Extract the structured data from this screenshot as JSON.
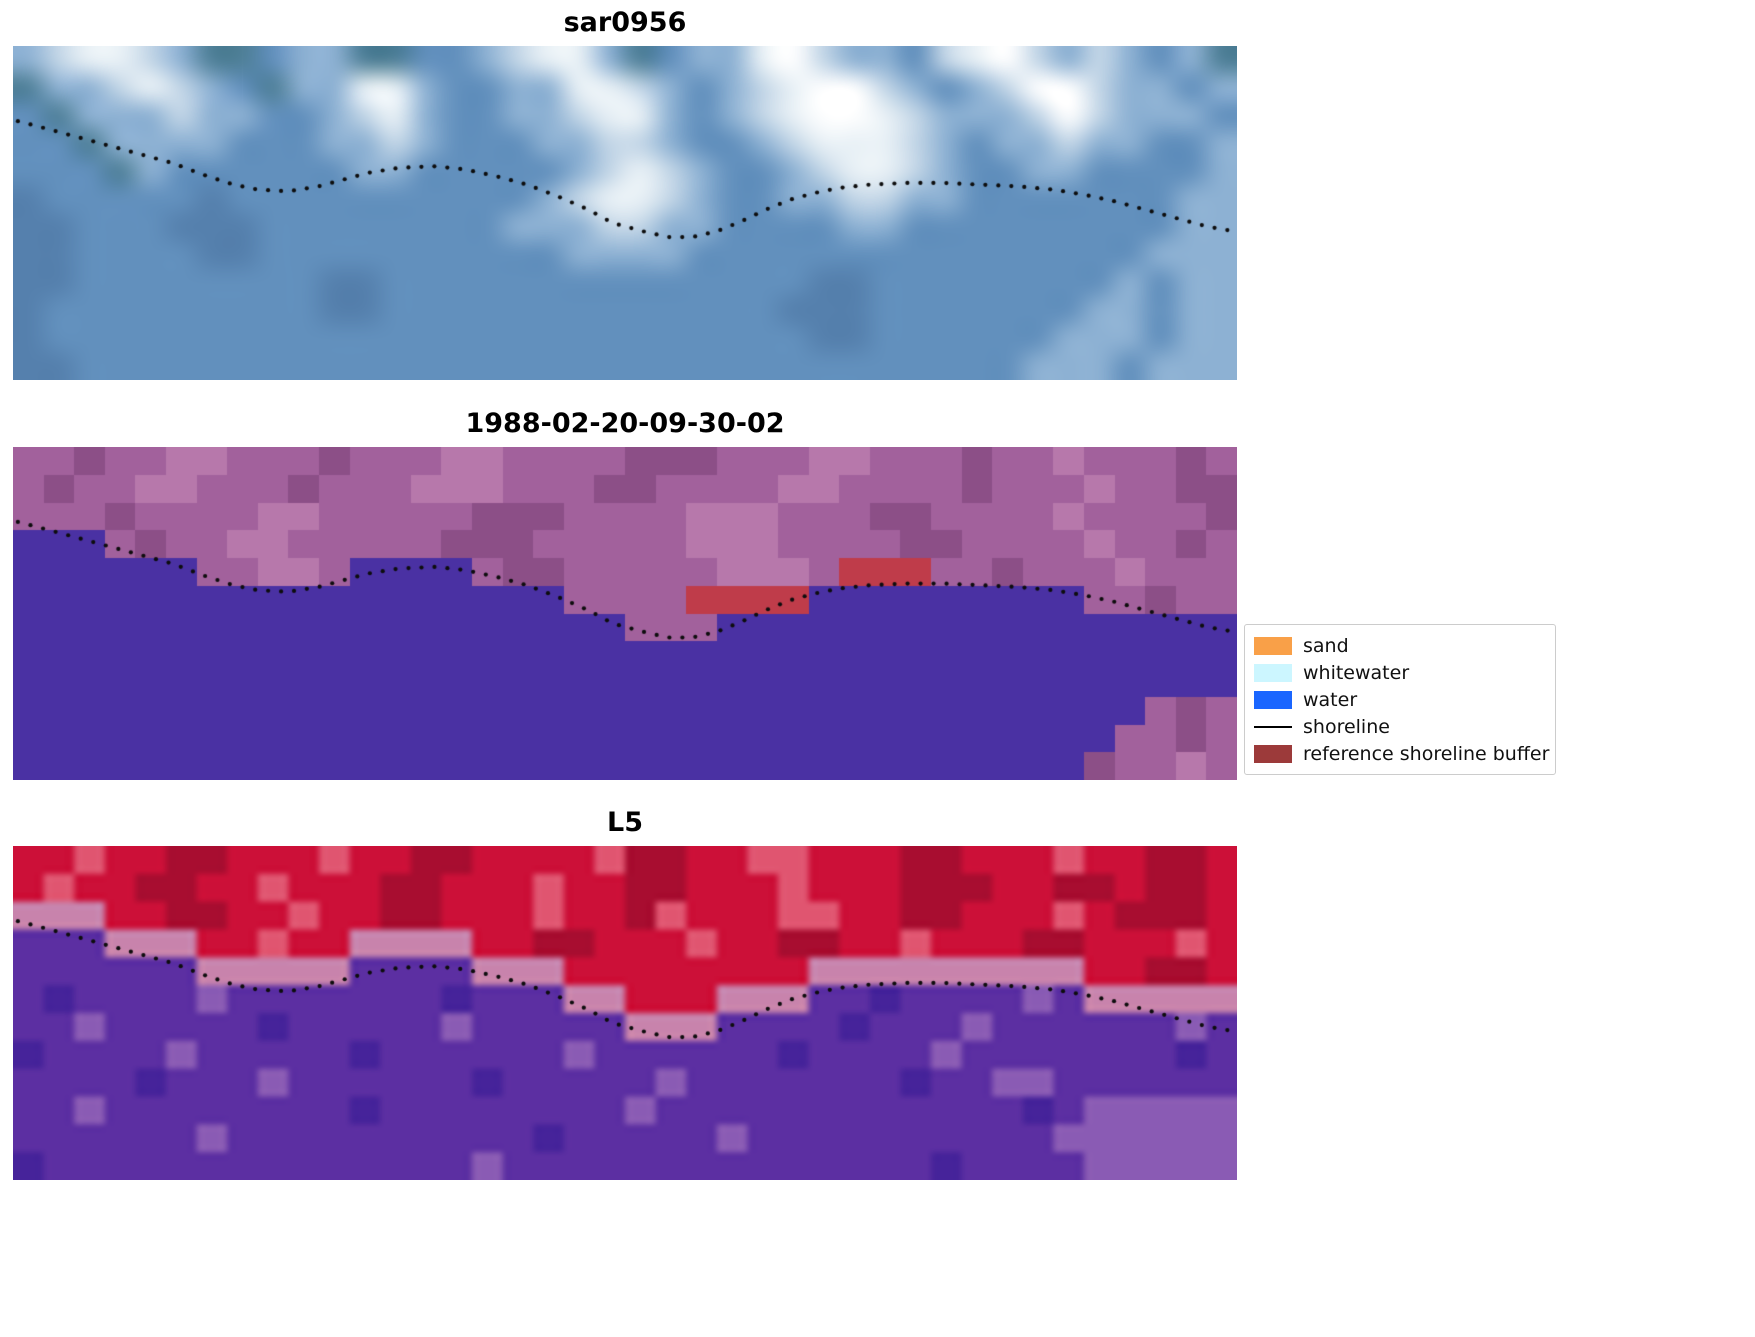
{
  "figure": {
    "panels": [
      {
        "id": "sar0956",
        "title": "sar0956",
        "render": "smooth",
        "grid": {
          "cols": 40,
          "rows": 12,
          "palette": {
            "t": "#4e7f97",
            "b": "#6290bd",
            "B": "#5580ad",
            "l": "#8db1d3",
            "L": "#c3d6e7",
            "w": "#e9f1f6",
            "W": "#ffffff"
          },
          "cells": [
            "lLwwLlttbllttbblLwwltbllwWLllbLwWLlLlblt",
            "tllLwLlbtllwwlbbllwwLlblLwWWLlblLWWLllbl",
            "btlllLllbblLwlbbllLwwlblLwWWwLlllLWLlllb",
            "bbtllllbbbllLlbbbllLLlbblLwwwLlbllLllbbl",
            "bbbtlbbbbbbllbbbbblLwLlbblLwwLlbbllbbbbl",
            "BbbbbbBbbbbbbbbbblLwwLlbbllLLllbbbbbbbll",
            "BBbbbBBBbbbbbbbblllLLllbbbbllbbbbbbbbbll",
            "BBbbbbBBbbbbbbbbbbllllbbbbbbbbbbbbbbblll",
            "BBbbbbbbbbBBbbbbbbbbbbbbbbBBbbbbbbbblbll",
            "BbbbbbbbbbBBbbbbbbbbbbbbbBBBbbbbbbbllbll",
            "BbbbbbbbbbbbbbbbbbbbbbbbbbBBbbbbbblllbll",
            "BBbbbbbbbbbbbbbbbbbbbbbbbbbbbbbbblllblll"
          ]
        }
      },
      {
        "id": "classified",
        "title": "1988-02-20-09-30-02",
        "render": "nearest",
        "grid": {
          "cols": 40,
          "rows": 12,
          "palette": {
            "m": "#a2619c",
            "d": "#8c4f87",
            "p": "#b778ab",
            "W": "#4a31a3",
            "R": "#bf3c4a"
          },
          "cells": [
            "mmdmmppmmmdmmmppmmmmdddmmmppmmmdmmpmmmdm",
            "mdmmppmmmdmmmpppmmmddmmmmppmmmmdmmmpmmdd",
            "mmmdmmmmppmmmmmdddmmmmpppmmmddmmmmpmmmmd",
            "WWWmdmmppmmmmmdddmmmmmpppmmmmddmmmmpmmdm",
            "WWWWWWmmppmWWWWmddmmmmmpppmRRRmmdmmmpmmm",
            "WWWWWWWWWWWWWWWWWWmmmmRRRRWWWWWWWWWmmdmm",
            "WWWWWWWWWWWWWWWWWWWWmmmWWWWWWWWWWWWWWWWW",
            "WWWWWWWWWWWWWWWWWWWWWWWWWWWWWWWWWWWWWWWW",
            "WWWWWWWWWWWWWWWWWWWWWWWWWWWWWWWWWWWWWWWW",
            "WWWWWWWWWWWWWWWWWWWWWWWWWWWWWWWWWWWWWmdm",
            "WWWWWWWWWWWWWWWWWWWWWWWWWWWWWWWWWWWWmmdm",
            "WWWWWWWWWWWWWWWWWWWWWWWWWWWWWWWWWWWdmmpm"
          ]
        }
      },
      {
        "id": "L5",
        "title": "L5",
        "render": "soft-block",
        "grid": {
          "cols": 40,
          "rows": 12,
          "palette": {
            "a": "#cc1038",
            "b": "#a80d30",
            "c": "#e05570",
            "t": "#c883ac",
            "P": "#5c2fa2",
            "Q": "#46239a",
            "q": "#8a5bb4"
          },
          "cells": [
            "aacaabbaaacaabbaaaacbbaaccaaabbaaacaabba",
            "acaabbaacaaabbaaacaabbaaacaaabbbaabbabba",
            "tttaabbaacaabbaaacaabcaaaccaabbaaacabbba",
            "PPPtttaacaattttaabbaaacaabbaacaaabbaaaca",
            "PPPPPPtttttPPPPtttaaaaaaaatttttttttaabba",
            "PQPPPPqPPPPPPPQPPPttaaatttPPQPPPPqPttttt",
            "PPqPPPPPQPPPPPqPPPPPtttPPPPQPPPqPPPPPPqP",
            "QPPPPqPPPPPQPPPPPPqPPPPPPQPPPPqPPPPPPPQP",
            "PPPPQPPPqPPPPPPQPPPPPqPPPPPPPQPPqqPPPPPP",
            "PPqPPPPPPPPQPPPPPPPPqPPPPPPPPPPPPQPqqqqq",
            "PPPPPPqPPPPPPPPPPQPPPPPqPPPPPPPPPPqqqqqq",
            "QPPPPPPPPPPPPPPqPPPPPPPPPPPPPPQPPPPqqqqq"
          ]
        }
      }
    ],
    "shoreline": {
      "color": "#0d0d0d",
      "dot_radius": 2.1,
      "dot_spacing": 13,
      "points": [
        [
          0.004,
          0.225
        ],
        [
          0.03,
          0.25
        ],
        [
          0.055,
          0.275
        ],
        [
          0.08,
          0.3
        ],
        [
          0.105,
          0.325
        ],
        [
          0.13,
          0.35
        ],
        [
          0.155,
          0.385
        ],
        [
          0.18,
          0.415
        ],
        [
          0.2,
          0.43
        ],
        [
          0.225,
          0.435
        ],
        [
          0.25,
          0.42
        ],
        [
          0.27,
          0.4
        ],
        [
          0.29,
          0.38
        ],
        [
          0.315,
          0.365
        ],
        [
          0.345,
          0.36
        ],
        [
          0.37,
          0.37
        ],
        [
          0.395,
          0.39
        ],
        [
          0.42,
          0.415
        ],
        [
          0.445,
          0.45
        ],
        [
          0.47,
          0.49
        ],
        [
          0.49,
          0.53
        ],
        [
          0.515,
          0.555
        ],
        [
          0.535,
          0.572
        ],
        [
          0.555,
          0.572
        ],
        [
          0.575,
          0.555
        ],
        [
          0.595,
          0.525
        ],
        [
          0.615,
          0.49
        ],
        [
          0.635,
          0.46
        ],
        [
          0.655,
          0.44
        ],
        [
          0.675,
          0.425
        ],
        [
          0.7,
          0.415
        ],
        [
          0.73,
          0.41
        ],
        [
          0.76,
          0.41
        ],
        [
          0.79,
          0.415
        ],
        [
          0.82,
          0.42
        ],
        [
          0.85,
          0.43
        ],
        [
          0.875,
          0.445
        ],
        [
          0.9,
          0.465
        ],
        [
          0.925,
          0.49
        ],
        [
          0.95,
          0.515
        ],
        [
          0.975,
          0.54
        ],
        [
          0.998,
          0.555
        ]
      ]
    },
    "legend": {
      "items": [
        {
          "label": "sand",
          "type": "patch",
          "color": "#f9a048"
        },
        {
          "label": "whitewater",
          "type": "patch",
          "color": "#ccf6ff"
        },
        {
          "label": "water",
          "type": "patch",
          "color": "#1a66ff"
        },
        {
          "label": "shoreline",
          "type": "line",
          "color": "#000000"
        },
        {
          "label": "reference shoreline buffer",
          "type": "patch",
          "color": "#9c3a3a"
        }
      ]
    }
  },
  "chart_data": {
    "type": "image",
    "panels": [
      {
        "title": "sar0956"
      },
      {
        "title": "1988-02-20-09-30-02"
      },
      {
        "title": "L5"
      }
    ],
    "legend_entries": [
      "sand",
      "whitewater",
      "water",
      "shoreline",
      "reference shoreline buffer"
    ],
    "overlay": "dotted shoreline traced across all three panels"
  }
}
